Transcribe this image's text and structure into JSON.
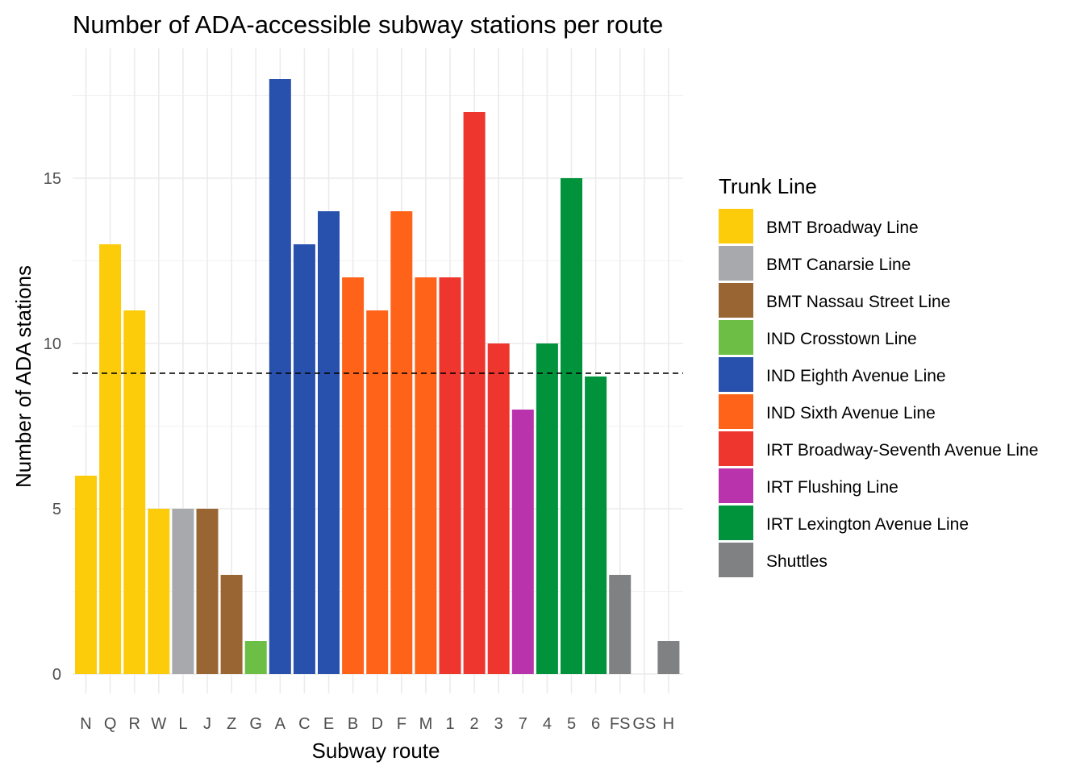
{
  "chart_data": {
    "type": "bar",
    "title": "Number of ADA-accessible subway stations per route",
    "xlabel": "Subway route",
    "ylabel": "Number of ADA stations",
    "ylim": [
      0,
      19
    ],
    "yticks": [
      0,
      5,
      10,
      15
    ],
    "grid": true,
    "reference_line": {
      "style": "dashed",
      "value": 9.1
    },
    "legend": {
      "title": "Trunk Line",
      "position": "right"
    },
    "groups": [
      {
        "name": "BMT Broadway Line",
        "color": "#FCCC0A"
      },
      {
        "name": "BMT Canarsie Line",
        "color": "#A7A9AC"
      },
      {
        "name": "BMT Nassau Street Line",
        "color": "#996633"
      },
      {
        "name": "IND Crosstown Line",
        "color": "#6CBE45"
      },
      {
        "name": "IND Eighth Avenue Line",
        "color": "#2850AD"
      },
      {
        "name": "IND Sixth Avenue Line",
        "color": "#FF6319"
      },
      {
        "name": "IRT Broadway-Seventh Avenue Line",
        "color": "#EE352E"
      },
      {
        "name": "IRT Flushing Line",
        "color": "#B933AD"
      },
      {
        "name": "IRT Lexington Avenue Line",
        "color": "#00933C"
      },
      {
        "name": "Shuttles",
        "color": "#808183"
      }
    ],
    "categories": [
      "N",
      "Q",
      "R",
      "W",
      "L",
      "J",
      "Z",
      "G",
      "A",
      "C",
      "E",
      "B",
      "D",
      "F",
      "M",
      "1",
      "2",
      "3",
      "7",
      "4",
      "5",
      "6",
      "FS",
      "GS",
      "H"
    ],
    "values": [
      6,
      13,
      11,
      5,
      5,
      5,
      3,
      1,
      18,
      13,
      14,
      12,
      11,
      14,
      12,
      12,
      17,
      10,
      8,
      10,
      15,
      9,
      3,
      0,
      1
    ],
    "group_index": [
      0,
      0,
      0,
      0,
      1,
      2,
      2,
      3,
      4,
      4,
      4,
      5,
      5,
      5,
      5,
      6,
      6,
      6,
      7,
      8,
      8,
      8,
      9,
      9,
      9
    ]
  }
}
